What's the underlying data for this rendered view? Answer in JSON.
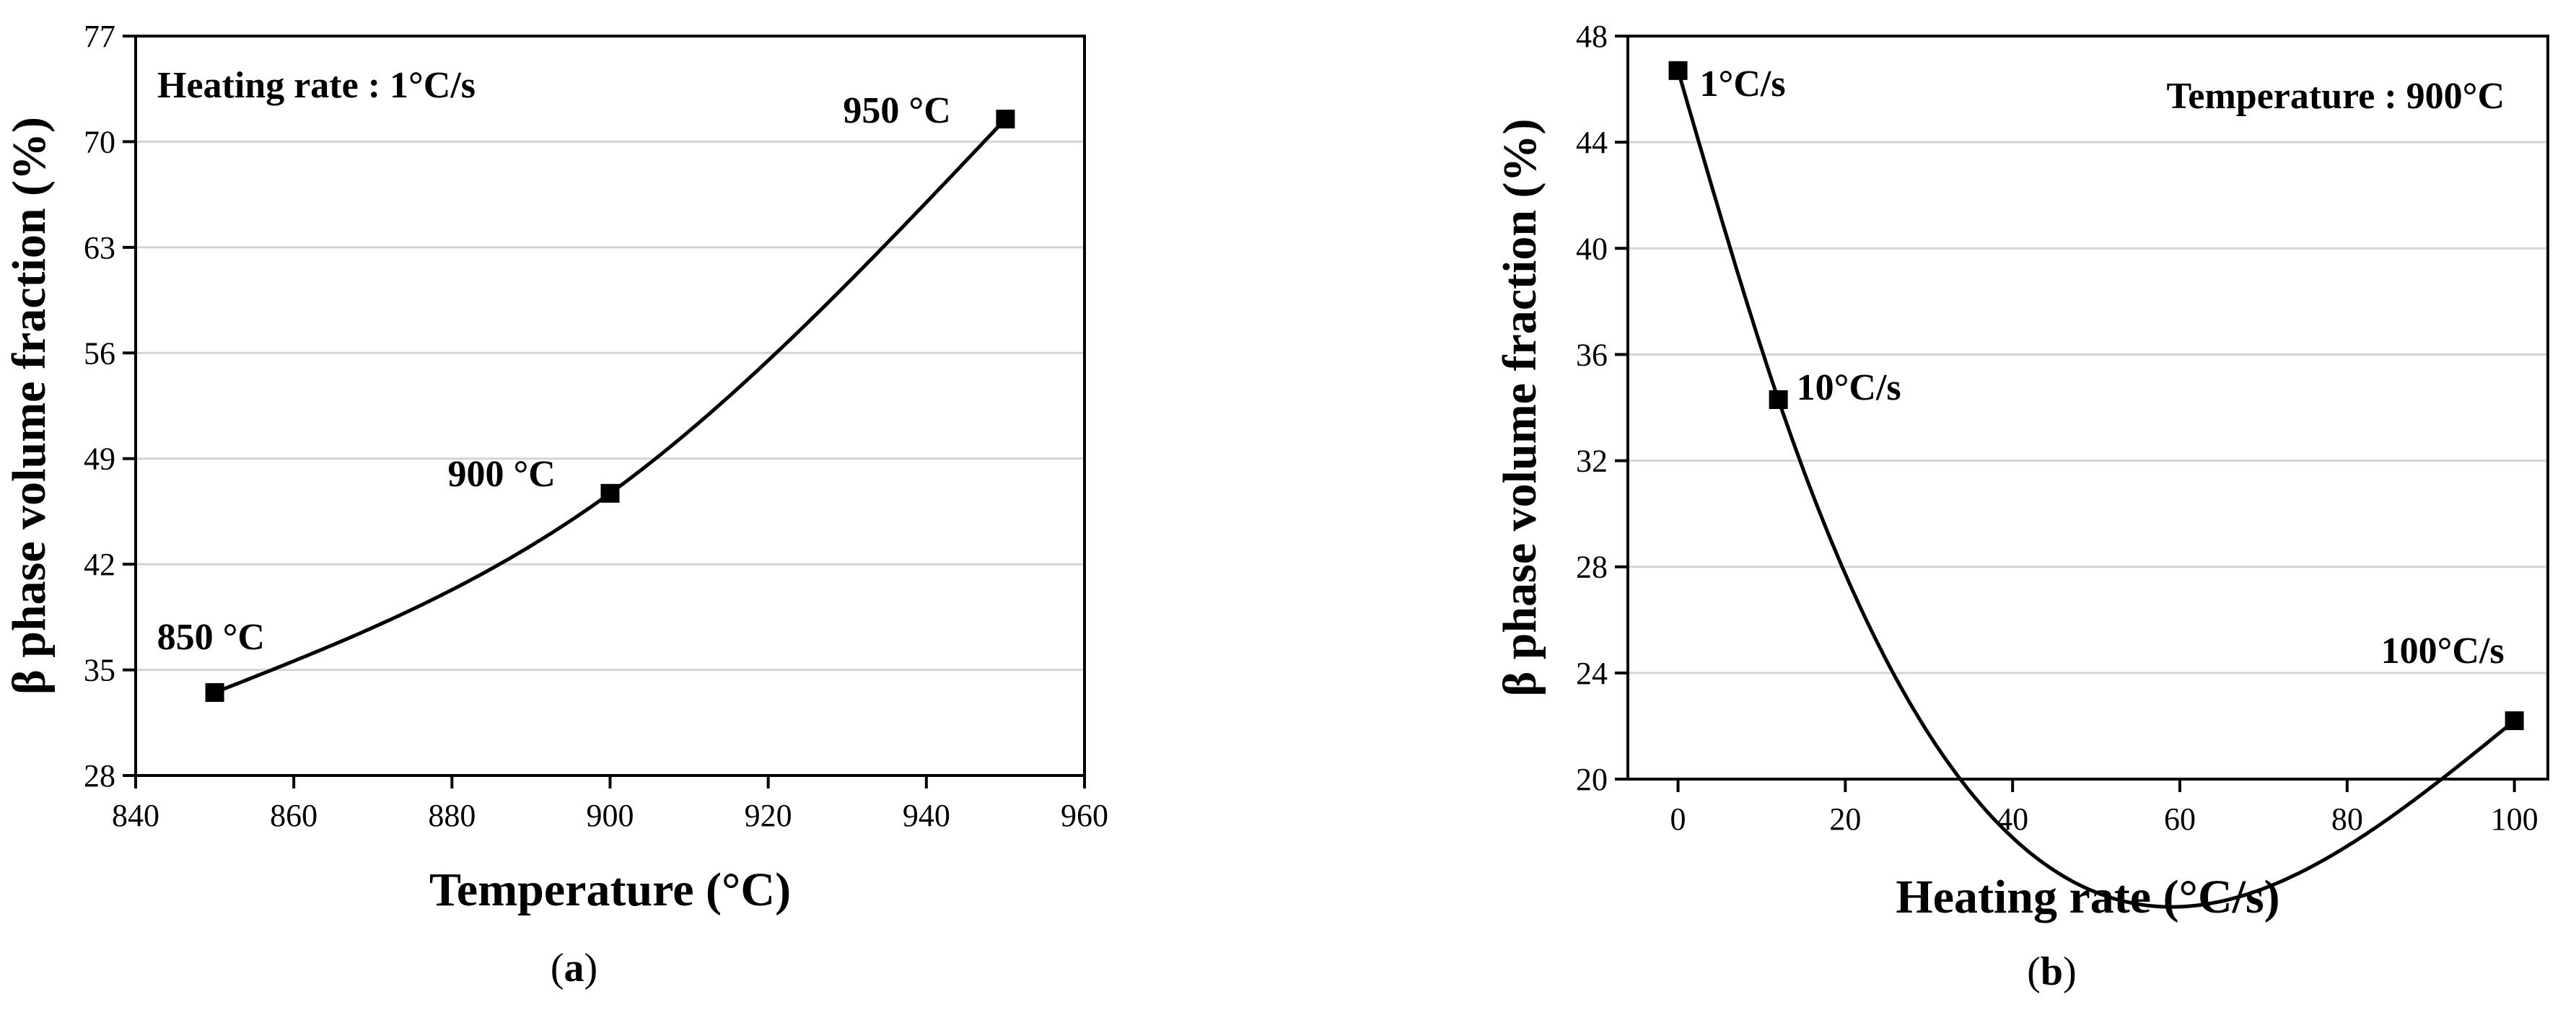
{
  "chart_data": [
    {
      "type": "line",
      "panel_label": "a",
      "xlabel": "Temperature (°C)",
      "ylabel": "β phase volume fraction (%)",
      "xlim": [
        840,
        960
      ],
      "ylim": [
        28,
        77
      ],
      "xticks": [
        840,
        860,
        880,
        900,
        920,
        940,
        960
      ],
      "yticks": [
        28,
        35,
        42,
        49,
        56,
        63,
        70,
        77
      ],
      "grid": "horizontal",
      "annotation": "Heating rate : 1°C/s",
      "series": [
        {
          "x": [
            850,
            900,
            950
          ],
          "y": [
            33.5,
            46.7,
            71.5
          ],
          "point_labels": [
            "850 °C",
            "900 °C",
            "950 °C"
          ],
          "marker": "square",
          "color": "#000000"
        }
      ]
    },
    {
      "type": "line",
      "panel_label": "b",
      "xlabel": "Heating rate (°C/s)",
      "ylabel": "β phase volume fraction (%)",
      "xlim": [
        -6,
        104
      ],
      "ylim": [
        20,
        48
      ],
      "xticks": [
        0,
        20,
        40,
        60,
        80,
        100
      ],
      "yticks": [
        20,
        24,
        28,
        32,
        36,
        40,
        44,
        48
      ],
      "grid": "horizontal",
      "annotation": "Temperature : 900°C",
      "series": [
        {
          "x": [
            0,
            12,
            100
          ],
          "y": [
            46.7,
            34.3,
            22.2
          ],
          "point_labels": [
            "1°C/s",
            "10°C/s",
            "100°C/s"
          ],
          "marker": "square",
          "color": "#000000"
        }
      ]
    }
  ]
}
